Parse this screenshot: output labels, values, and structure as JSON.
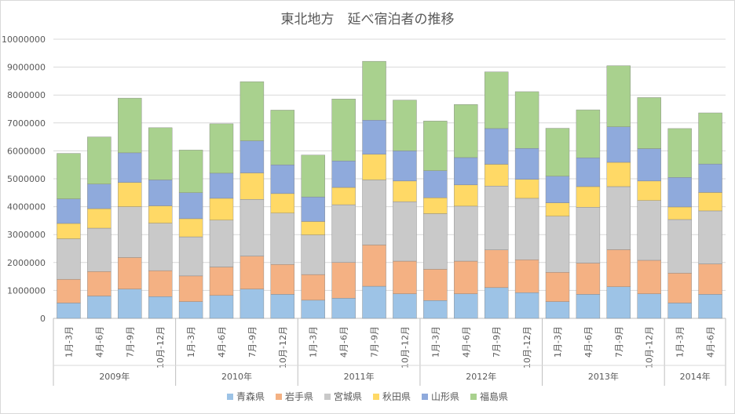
{
  "chart_data": {
    "type": "bar",
    "stacked": true,
    "title": "東北地方　延べ宿泊者の推移",
    "xlabel": "",
    "ylabel": "",
    "ylim": [
      0,
      10000000
    ],
    "yticks": [
      "0",
      "1000000",
      "2000000",
      "3000000",
      "4000000",
      "5000000",
      "6000000",
      "7000000",
      "8000000",
      "9000000",
      "10000000"
    ],
    "yticks_values": [
      0,
      1000000,
      2000000,
      3000000,
      4000000,
      5000000,
      6000000,
      7000000,
      8000000,
      9000000,
      10000000
    ],
    "grid": true,
    "legend_position": "bottom",
    "categories": [
      "1月-3月",
      "4月-6月",
      "7月-9月",
      "10月-12月",
      "1月-3月",
      "4月-6月",
      "7月-9月",
      "10月-12月",
      "1月-3月",
      "4月-6月",
      "7月-9月",
      "10月-12月",
      "1月-3月",
      "4月-6月",
      "7月-9月",
      "10月-12月",
      "1月-3月",
      "4月-6月",
      "7月-9月",
      "10月-12月",
      "1月-3月",
      "4月-6月"
    ],
    "groups": [
      {
        "label": "2009年",
        "count": 4
      },
      {
        "label": "2010年",
        "count": 4
      },
      {
        "label": "2011年",
        "count": 4
      },
      {
        "label": "2012年",
        "count": 4
      },
      {
        "label": "2013年",
        "count": 4
      },
      {
        "label": "2014年",
        "count": 2
      }
    ],
    "series": [
      {
        "name": "青森県",
        "color": "#9dc3e6",
        "values": [
          550000,
          800000,
          1050000,
          780000,
          600000,
          820000,
          1050000,
          860000,
          650000,
          720000,
          1150000,
          880000,
          640000,
          880000,
          1100000,
          920000,
          600000,
          860000,
          1130000,
          880000,
          550000,
          860000
        ]
      },
      {
        "name": "岩手県",
        "color": "#f4b183",
        "values": [
          850000,
          880000,
          1130000,
          930000,
          920000,
          1020000,
          1180000,
          1070000,
          920000,
          1280000,
          1480000,
          1170000,
          1120000,
          1170000,
          1350000,
          1180000,
          1050000,
          1120000,
          1330000,
          1200000,
          1070000,
          1090000
        ]
      },
      {
        "name": "宮城県",
        "color": "#c9c9c9",
        "values": [
          1450000,
          1550000,
          1820000,
          1700000,
          1400000,
          1680000,
          2030000,
          1840000,
          1420000,
          2070000,
          2330000,
          2130000,
          1990000,
          1970000,
          2290000,
          2200000,
          2010000,
          2000000,
          2260000,
          2140000,
          1920000,
          1900000
        ]
      },
      {
        "name": "秋田県",
        "color": "#ffd966",
        "values": [
          550000,
          700000,
          870000,
          620000,
          650000,
          780000,
          950000,
          700000,
          480000,
          620000,
          920000,
          740000,
          570000,
          760000,
          780000,
          680000,
          480000,
          740000,
          870000,
          700000,
          450000,
          660000
        ]
      },
      {
        "name": "山形県",
        "color": "#8faadc",
        "values": [
          880000,
          880000,
          1060000,
          930000,
          930000,
          900000,
          1150000,
          1030000,
          880000,
          950000,
          1220000,
          1080000,
          970000,
          980000,
          1280000,
          1110000,
          950000,
          1030000,
          1270000,
          1160000,
          1060000,
          1020000
        ]
      },
      {
        "name": "福島県",
        "color": "#a9d18e",
        "values": [
          1630000,
          1690000,
          1960000,
          1870000,
          1530000,
          1770000,
          2120000,
          1960000,
          1500000,
          2220000,
          2110000,
          1820000,
          1780000,
          1900000,
          2030000,
          2030000,
          1720000,
          1720000,
          2190000,
          1830000,
          1750000,
          1830000
        ]
      }
    ]
  }
}
